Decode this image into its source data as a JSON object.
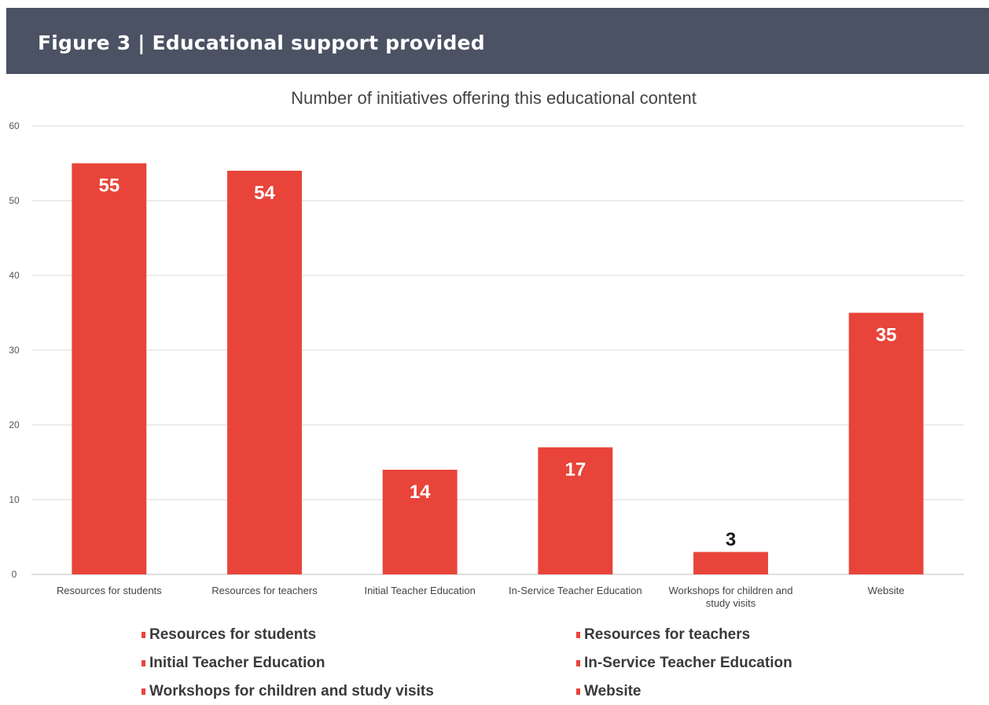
{
  "header": {
    "title": "Figure 3 | Educational support provided"
  },
  "chart_data": {
    "type": "bar",
    "title": "Number of initiatives offering this educational content",
    "categories": [
      "Resources for students",
      "Resources for teachers",
      "Initial Teacher Education",
      "In-Service Teacher Education",
      "Workshops for children and study visits",
      "Website"
    ],
    "category_display": [
      [
        "Resources for students"
      ],
      [
        "Resources for teachers"
      ],
      [
        "Initial Teacher Education"
      ],
      [
        "In-Service Teacher Education"
      ],
      [
        "Workshops for children and",
        "study visits"
      ],
      [
        "Website"
      ]
    ],
    "values": [
      55,
      54,
      14,
      17,
      3,
      35
    ],
    "ylim": [
      0,
      60
    ],
    "yticks": [
      0,
      10,
      20,
      30,
      40,
      50,
      60
    ],
    "xlabel": "",
    "ylabel": "",
    "grid": true,
    "bar_color": "#e8443a",
    "label_color_inside": "#ffffff",
    "label_color_outside": "#1a1a1a",
    "legend": {
      "position": "bottom",
      "entries": [
        "Resources for students",
        "Resources for teachers",
        "Initial Teacher Education",
        "In-Service Teacher Education",
        "Workshops for children and study visits",
        "Website"
      ]
    }
  }
}
